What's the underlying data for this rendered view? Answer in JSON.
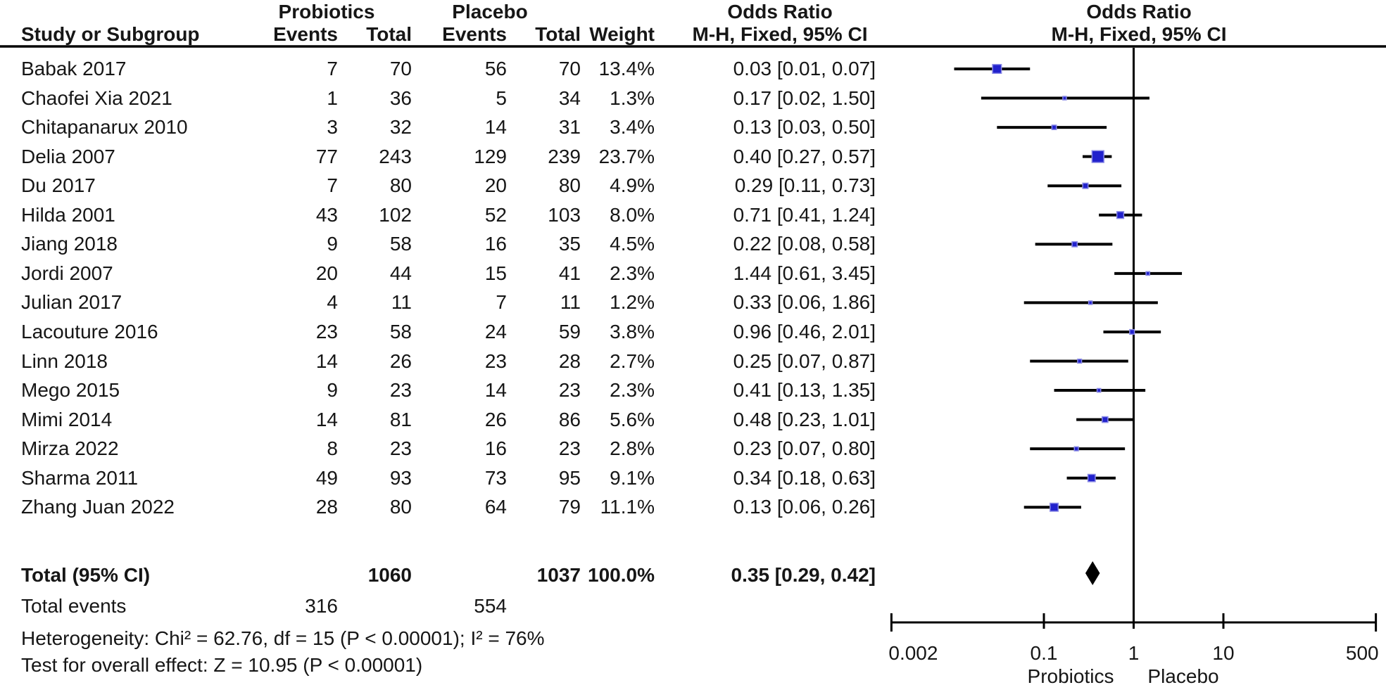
{
  "headers": {
    "group_probiotics": "Probiotics",
    "group_placebo": "Placebo",
    "study": "Study or Subgroup",
    "events": "Events",
    "total": "Total",
    "weight": "Weight",
    "odds_ratio_text_col": {
      "line1": "Odds Ratio",
      "line2": "M-H, Fixed, 95% CI"
    },
    "odds_ratio_plot_col": {
      "line1": "Odds Ratio",
      "line2": "M-H, Fixed, 95% CI"
    }
  },
  "chart_data": {
    "type": "forest",
    "x_scale": "log",
    "x_range": [
      0.002,
      500
    ],
    "x_ticks": [
      "0.002",
      "0.1",
      "1",
      "10",
      "500"
    ],
    "x_tick_values": [
      0.002,
      0.1,
      1,
      10,
      500
    ],
    "favours_left": "Probiotics",
    "favours_right": "Placebo",
    "effect_measure": "Odds Ratio, M-H, Fixed, 95% CI",
    "studies": [
      {
        "study": "Babak 2017",
        "events_probiotics": "7",
        "total_probiotics": "70",
        "events_placebo": "56",
        "total_placebo": "70",
        "weight": "13.4%",
        "weight_pct": 13.4,
        "or_ci": "0.03 [0.01, 0.07]",
        "or": 0.03,
        "ci_low": 0.01,
        "ci_high": 0.07
      },
      {
        "study": "Chaofei Xia 2021",
        "events_probiotics": "1",
        "total_probiotics": "36",
        "events_placebo": "5",
        "total_placebo": "34",
        "weight": "1.3%",
        "weight_pct": 1.3,
        "or_ci": "0.17 [0.02, 1.50]",
        "or": 0.17,
        "ci_low": 0.02,
        "ci_high": 1.5
      },
      {
        "study": "Chitapanarux 2010",
        "events_probiotics": "3",
        "total_probiotics": "32",
        "events_placebo": "14",
        "total_placebo": "31",
        "weight": "3.4%",
        "weight_pct": 3.4,
        "or_ci": "0.13 [0.03, 0.50]",
        "or": 0.13,
        "ci_low": 0.03,
        "ci_high": 0.5
      },
      {
        "study": "Delia 2007",
        "events_probiotics": "77",
        "total_probiotics": "243",
        "events_placebo": "129",
        "total_placebo": "239",
        "weight": "23.7%",
        "weight_pct": 23.7,
        "or_ci": "0.40 [0.27, 0.57]",
        "or": 0.4,
        "ci_low": 0.27,
        "ci_high": 0.57
      },
      {
        "study": "Du 2017",
        "events_probiotics": "7",
        "total_probiotics": "80",
        "events_placebo": "20",
        "total_placebo": "80",
        "weight": "4.9%",
        "weight_pct": 4.9,
        "or_ci": "0.29 [0.11, 0.73]",
        "or": 0.29,
        "ci_low": 0.11,
        "ci_high": 0.73
      },
      {
        "study": "Hilda 2001",
        "events_probiotics": "43",
        "total_probiotics": "102",
        "events_placebo": "52",
        "total_placebo": "103",
        "weight": "8.0%",
        "weight_pct": 8.0,
        "or_ci": "0.71 [0.41, 1.24]",
        "or": 0.71,
        "ci_low": 0.41,
        "ci_high": 1.24
      },
      {
        "study": "Jiang 2018",
        "events_probiotics": "9",
        "total_probiotics": "58",
        "events_placebo": "16",
        "total_placebo": "35",
        "weight": "4.5%",
        "weight_pct": 4.5,
        "or_ci": "0.22 [0.08, 0.58]",
        "or": 0.22,
        "ci_low": 0.08,
        "ci_high": 0.58
      },
      {
        "study": "Jordi 2007",
        "events_probiotics": "20",
        "total_probiotics": "44",
        "events_placebo": "15",
        "total_placebo": "41",
        "weight": "2.3%",
        "weight_pct": 2.3,
        "or_ci": "1.44 [0.61, 3.45]",
        "or": 1.44,
        "ci_low": 0.61,
        "ci_high": 3.45
      },
      {
        "study": "Julian 2017",
        "events_probiotics": "4",
        "total_probiotics": "11",
        "events_placebo": "7",
        "total_placebo": "11",
        "weight": "1.2%",
        "weight_pct": 1.2,
        "or_ci": "0.33 [0.06, 1.86]",
        "or": 0.33,
        "ci_low": 0.06,
        "ci_high": 1.86
      },
      {
        "study": "Lacouture 2016",
        "events_probiotics": "23",
        "total_probiotics": "58",
        "events_placebo": "24",
        "total_placebo": "59",
        "weight": "3.8%",
        "weight_pct": 3.8,
        "or_ci": "0.96 [0.46, 2.01]",
        "or": 0.96,
        "ci_low": 0.46,
        "ci_high": 2.01
      },
      {
        "study": "Linn 2018",
        "events_probiotics": "14",
        "total_probiotics": "26",
        "events_placebo": "23",
        "total_placebo": "28",
        "weight": "2.7%",
        "weight_pct": 2.7,
        "or_ci": "0.25 [0.07, 0.87]",
        "or": 0.25,
        "ci_low": 0.07,
        "ci_high": 0.87
      },
      {
        "study": "Mego 2015",
        "events_probiotics": "9",
        "total_probiotics": "23",
        "events_placebo": "14",
        "total_placebo": "23",
        "weight": "2.3%",
        "weight_pct": 2.3,
        "or_ci": "0.41 [0.13, 1.35]",
        "or": 0.41,
        "ci_low": 0.13,
        "ci_high": 1.35
      },
      {
        "study": "Mimi 2014",
        "events_probiotics": "14",
        "total_probiotics": "81",
        "events_placebo": "26",
        "total_placebo": "86",
        "weight": "5.6%",
        "weight_pct": 5.6,
        "or_ci": "0.48 [0.23, 1.01]",
        "or": 0.48,
        "ci_low": 0.23,
        "ci_high": 1.01
      },
      {
        "study": "Mirza 2022",
        "events_probiotics": "8",
        "total_probiotics": "23",
        "events_placebo": "16",
        "total_placebo": "23",
        "weight": "2.8%",
        "weight_pct": 2.8,
        "or_ci": "0.23 [0.07, 0.80]",
        "or": 0.23,
        "ci_low": 0.07,
        "ci_high": 0.8
      },
      {
        "study": "Sharma 2011",
        "events_probiotics": "49",
        "total_probiotics": "93",
        "events_placebo": "73",
        "total_placebo": "95",
        "weight": "9.1%",
        "weight_pct": 9.1,
        "or_ci": "0.34 [0.18, 0.63]",
        "or": 0.34,
        "ci_low": 0.18,
        "ci_high": 0.63
      },
      {
        "study": "Zhang Juan 2022",
        "events_probiotics": "28",
        "total_probiotics": "80",
        "events_placebo": "64",
        "total_placebo": "79",
        "weight": "11.1%",
        "weight_pct": 11.1,
        "or_ci": "0.13 [0.06, 0.26]",
        "or": 0.13,
        "ci_low": 0.06,
        "ci_high": 0.26
      }
    ],
    "total": {
      "label": "Total (95% CI)",
      "total_probiotics": "1060",
      "total_placebo": "1037",
      "weight": "100.0%",
      "or_ci": "0.35 [0.29, 0.42]",
      "or": 0.35,
      "ci_low": 0.29,
      "ci_high": 0.42
    },
    "total_events": {
      "label": "Total events",
      "events_probiotics": "316",
      "events_placebo": "554"
    },
    "heterogeneity": "Heterogeneity: Chi² = 62.76, df = 15 (P < 0.00001); I² = 76%",
    "overall_effect": "Test for overall effect: Z = 10.95 (P < 0.00001)"
  },
  "colors": {
    "marker": "#2121CC",
    "marker_border": "#8A8AE6",
    "ci_line": "#000000",
    "diamond": "#000000",
    "axis": "#000000",
    "text": "#161616"
  }
}
